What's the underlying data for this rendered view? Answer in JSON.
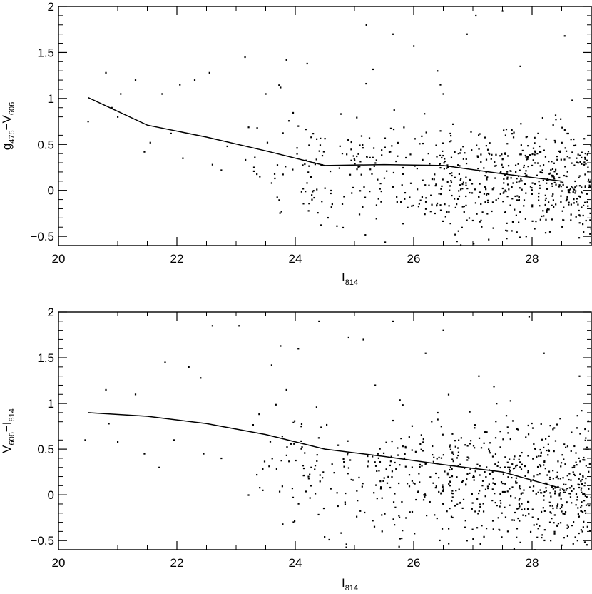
{
  "chart_data": [
    {
      "type": "scatter",
      "title": "",
      "xlabel": {
        "main": "I",
        "sub": "814"
      },
      "ylabel": {
        "main": "g",
        "sub1": "475",
        "mid": "−V",
        "sub2": "606"
      },
      "xlim": [
        20,
        29
      ],
      "ylim": [
        -0.6,
        2.0
      ],
      "xticks": [
        20,
        22,
        24,
        26,
        28
      ],
      "yticks": [
        -0.5,
        0,
        0.5,
        1,
        1.5,
        2
      ],
      "yticklabels": [
        "−0.5",
        "0",
        "0.5",
        "1",
        "1.5",
        "2"
      ],
      "grid": false,
      "scatter_seed": 11,
      "points": [
        [
          20.5,
          0.75
        ],
        [
          20.8,
          1.28
        ],
        [
          20.9,
          0.9
        ],
        [
          21.0,
          0.8
        ],
        [
          21.05,
          1.05
        ],
        [
          21.3,
          1.2
        ],
        [
          21.45,
          0.42
        ],
        [
          21.55,
          0.52
        ],
        [
          21.75,
          1.05
        ],
        [
          21.9,
          0.62
        ],
        [
          22.05,
          1.15
        ],
        [
          22.1,
          0.35
        ],
        [
          22.3,
          1.2
        ],
        [
          22.55,
          1.28
        ],
        [
          22.6,
          0.28
        ],
        [
          22.75,
          0.22
        ],
        [
          22.85,
          0.48
        ],
        [
          23.15,
          1.45
        ],
        [
          23.4,
          0.15
        ],
        [
          23.5,
          1.05
        ],
        [
          23.75,
          1.12
        ],
        [
          23.85,
          1.42
        ],
        [
          24.2,
          1.38
        ],
        [
          24.05,
          0.7
        ],
        [
          23.6,
          0.08
        ],
        [
          23.3,
          0.25
        ],
        [
          25.2,
          1.8
        ],
        [
          25.65,
          1.7
        ],
        [
          26.0,
          1.57
        ],
        [
          26.4,
          1.3
        ],
        [
          26.45,
          1.15
        ],
        [
          26.5,
          1.05
        ],
        [
          26.9,
          1.7
        ],
        [
          27.05,
          1.9
        ],
        [
          27.5,
          1.95
        ],
        [
          27.8,
          1.35
        ],
        [
          28.1,
          0.62
        ],
        [
          28.55,
          1.68
        ],
        [
          28.75,
          0.35
        ],
        [
          28.9,
          0.05
        ],
        [
          26.7,
          -0.48
        ],
        [
          27.9,
          -0.5
        ],
        [
          28.3,
          -0.45
        ]
      ],
      "clouds": [
        {
          "x_range": [
            24.0,
            29.0
          ],
          "y_center": 0.22,
          "y_spread": 0.32,
          "count": 650
        },
        {
          "x_range": [
            23.0,
            24.5
          ],
          "y_center": 0.3,
          "y_spread": 0.28,
          "count": 55
        }
      ],
      "fit_line": {
        "x": [
          20.5,
          21.5,
          22.5,
          23.5,
          24.5,
          25.5,
          26.5,
          27.5,
          28.5
        ],
        "y": [
          1.01,
          0.71,
          0.58,
          0.43,
          0.27,
          0.28,
          0.27,
          0.18,
          0.1
        ]
      }
    },
    {
      "type": "scatter",
      "title": "",
      "xlabel": {
        "main": "I",
        "sub": "814"
      },
      "ylabel": {
        "main": "V",
        "sub1": "606",
        "mid": "−I",
        "sub2": "814"
      },
      "xlim": [
        20,
        29
      ],
      "ylim": [
        -0.6,
        2.0
      ],
      "xticks": [
        20,
        22,
        24,
        26,
        28
      ],
      "yticks": [
        -0.5,
        0,
        0.5,
        1,
        1.5,
        2
      ],
      "yticklabels": [
        "−0.5",
        "0",
        "0.5",
        "1",
        "1.5",
        "2"
      ],
      "grid": false,
      "scatter_seed": 29,
      "points": [
        [
          20.45,
          0.6
        ],
        [
          20.8,
          1.15
        ],
        [
          20.85,
          0.78
        ],
        [
          21.0,
          0.58
        ],
        [
          21.3,
          1.1
        ],
        [
          21.45,
          0.45
        ],
        [
          21.7,
          0.3
        ],
        [
          21.8,
          1.45
        ],
        [
          21.95,
          0.6
        ],
        [
          22.2,
          1.4
        ],
        [
          22.4,
          1.28
        ],
        [
          22.45,
          0.45
        ],
        [
          22.6,
          1.85
        ],
        [
          22.75,
          0.4
        ],
        [
          23.05,
          1.85
        ],
        [
          23.35,
          0.22
        ],
        [
          23.45,
          0.05
        ],
        [
          23.6,
          1.42
        ],
        [
          23.75,
          1.63
        ],
        [
          23.85,
          1.15
        ],
        [
          24.05,
          1.6
        ],
        [
          24.1,
          0.75
        ],
        [
          24.4,
          1.9
        ],
        [
          24.9,
          1.72
        ],
        [
          25.15,
          1.7
        ],
        [
          25.35,
          1.2
        ],
        [
          25.65,
          1.9
        ],
        [
          26.2,
          1.55
        ],
        [
          26.5,
          1.8
        ],
        [
          27.1,
          1.3
        ],
        [
          27.4,
          1.0
        ],
        [
          27.95,
          1.95
        ],
        [
          28.2,
          1.55
        ],
        [
          28.8,
          1.3
        ],
        [
          28.95,
          0.7
        ],
        [
          28.85,
          -0.4
        ],
        [
          28.6,
          -0.45
        ],
        [
          26.9,
          -0.5
        ],
        [
          27.8,
          -0.52
        ],
        [
          28.3,
          -0.3
        ]
      ],
      "clouds": [
        {
          "x_range": [
            24.0,
            29.0
          ],
          "y_center": 0.25,
          "y_spread": 0.35,
          "count": 680
        },
        {
          "x_range": [
            23.0,
            24.5
          ],
          "y_center": 0.35,
          "y_spread": 0.3,
          "count": 55
        }
      ],
      "fit_line": {
        "x": [
          20.5,
          21.5,
          22.5,
          23.5,
          24.5,
          25.5,
          26.5,
          27.5,
          28.5
        ],
        "y": [
          0.9,
          0.86,
          0.78,
          0.66,
          0.5,
          0.42,
          0.33,
          0.25,
          0.07
        ]
      }
    }
  ]
}
